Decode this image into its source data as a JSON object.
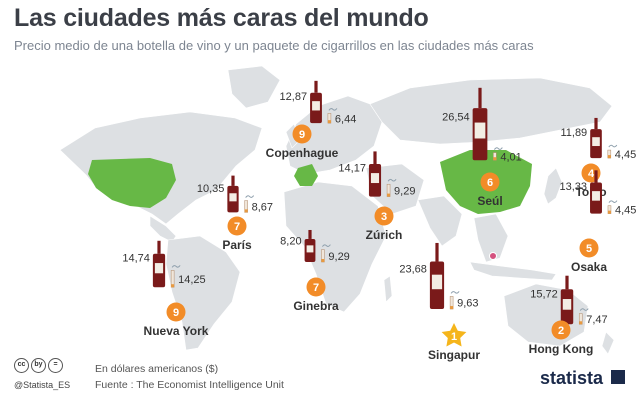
{
  "title": "Las ciudades más caras del mundo",
  "subtitle": "Precio medio de una botella de vino y un paquete de cigarrillos en las ciudades más caras",
  "footer": {
    "note": "En dólares americanos ($)",
    "source": "Fuente : The Economist Intelligence Unit",
    "handle": "@Statista_ES",
    "brand": "statista",
    "license_icons": [
      "cc",
      "by",
      "="
    ]
  },
  "colors": {
    "background": "#ffffff",
    "land": "#dde0e3",
    "highlight_country": "#67b846",
    "wine_bottle": "#7a1a1a",
    "label_box": "#f0f0ec",
    "rank_badge": "#f28c28",
    "top_badge": "#f5b51b",
    "text": "#333333"
  },
  "chart_data": {
    "type": "map-pictogram",
    "unit": "USD",
    "series": [
      {
        "name": "botella de vino",
        "icon": "wine-bottle-icon"
      },
      {
        "name": "paquete de cigarrillos",
        "icon": "cigarette-icon"
      }
    ],
    "highlighted_countries": [
      "Estados Unidos",
      "Francia",
      "China"
    ],
    "cities": [
      {
        "city": "Singapur",
        "rank": "1",
        "wine": 23.68,
        "wine_label": "23,68",
        "cigarettes": 9.63,
        "cig_label": "9,63",
        "top": true
      },
      {
        "city": "Hong Kong",
        "rank": "2",
        "wine": 15.72,
        "wine_label": "15,72",
        "cigarettes": 7.47,
        "cig_label": "7,47"
      },
      {
        "city": "Zúrich",
        "rank": "3",
        "wine": 14.17,
        "wine_label": "14,17",
        "cigarettes": 9.29,
        "cig_label": "9,29"
      },
      {
        "city": "Tokio",
        "rank": "4",
        "wine": 11.89,
        "wine_label": "11,89",
        "cigarettes": 4.45,
        "cig_label": "4,45"
      },
      {
        "city": "Osaka",
        "rank": "5",
        "wine": 13.33,
        "wine_label": "13,33",
        "cigarettes": 4.45,
        "cig_label": "4,45"
      },
      {
        "city": "Seúl",
        "rank": "6",
        "wine": 26.54,
        "wine_label": "26,54",
        "cigarettes": 4.01,
        "cig_label": "4,01"
      },
      {
        "city": "Ginebra",
        "rank": "7",
        "wine": 8.2,
        "wine_label": "8,20",
        "cigarettes": 9.29,
        "cig_label": "9,29"
      },
      {
        "city": "París",
        "rank": "7",
        "wine": 10.35,
        "wine_label": "10,35",
        "cigarettes": 8.67,
        "cig_label": "8,67"
      },
      {
        "city": "Copenhague",
        "rank": "9",
        "wine": 12.87,
        "wine_label": "12,87",
        "cigarettes": 6.44,
        "cig_label": "6,44"
      },
      {
        "city": "Nueva York",
        "rank": "9",
        "wine": 14.74,
        "wine_label": "14,74",
        "cigarettes": 14.25,
        "cig_label": "14,25"
      }
    ]
  }
}
